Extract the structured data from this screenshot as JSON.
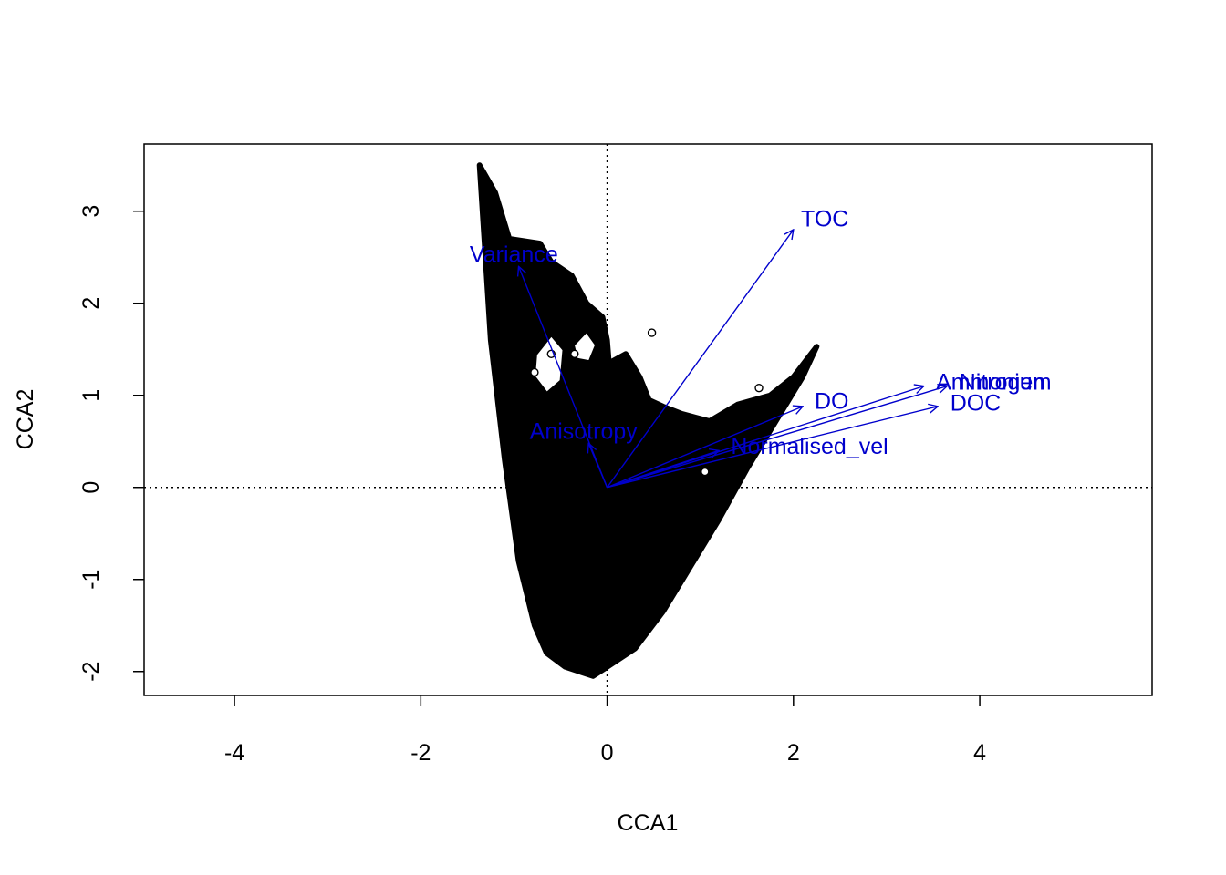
{
  "chart_data": {
    "type": "scatter",
    "xlabel": "CCA1",
    "ylabel": "CCA2",
    "xlim": [
      -4.97,
      5.85
    ],
    "ylim": [
      -2.26,
      3.73
    ],
    "x_ticks": [
      -4,
      -2,
      0,
      2,
      4
    ],
    "y_ticks": [
      -2,
      -1,
      0,
      1,
      2,
      3
    ],
    "reference_lines": {
      "x": 0,
      "y": 0,
      "style": "dotted"
    },
    "grid": false,
    "legend": "none",
    "point_color": "#000000",
    "vector_color": "#0000cc",
    "point_cloud": {
      "outline": [
        [
          -1.37,
          3.5
        ],
        [
          -1.2,
          3.2
        ],
        [
          -1.05,
          2.7
        ],
        [
          -0.72,
          2.65
        ],
        [
          -0.6,
          2.45
        ],
        [
          -0.38,
          2.3
        ],
        [
          -0.22,
          2.0
        ],
        [
          -0.05,
          1.85
        ],
        [
          0.0,
          1.6
        ],
        [
          0.02,
          1.35
        ],
        [
          0.2,
          1.45
        ],
        [
          0.35,
          1.2
        ],
        [
          0.45,
          0.95
        ],
        [
          0.6,
          0.88
        ],
        [
          0.8,
          0.8
        ],
        [
          1.1,
          0.72
        ],
        [
          1.4,
          0.9
        ],
        [
          1.75,
          1.0
        ],
        [
          2.0,
          1.2
        ],
        [
          2.25,
          1.53
        ],
        [
          2.1,
          1.2
        ],
        [
          1.8,
          0.7
        ],
        [
          1.5,
          0.2
        ],
        [
          1.2,
          -0.35
        ],
        [
          0.9,
          -0.85
        ],
        [
          0.6,
          -1.35
        ],
        [
          0.3,
          -1.75
        ],
        [
          0.0,
          -1.95
        ],
        [
          -0.15,
          -2.05
        ],
        [
          -0.45,
          -1.95
        ],
        [
          -0.65,
          -1.8
        ],
        [
          -0.78,
          -1.5
        ],
        [
          -0.95,
          -0.8
        ],
        [
          -1.1,
          0.3
        ],
        [
          -1.25,
          1.6
        ]
      ],
      "holes": [
        [
          [
            -0.78,
            1.45
          ],
          [
            -0.6,
            1.68
          ],
          [
            -0.45,
            1.5
          ],
          [
            -0.48,
            1.15
          ],
          [
            -0.65,
            1.0
          ],
          [
            -0.8,
            1.2
          ]
        ],
        [
          [
            -0.38,
            1.55
          ],
          [
            -0.22,
            1.72
          ],
          [
            -0.1,
            1.55
          ],
          [
            -0.18,
            1.35
          ],
          [
            -0.34,
            1.38
          ]
        ]
      ],
      "outliers": [
        [
          0.48,
          1.68
        ],
        [
          1.63,
          1.08
        ],
        [
          -0.78,
          1.25
        ],
        [
          -0.6,
          1.45
        ],
        [
          -0.35,
          1.45
        ],
        [
          1.05,
          0.17
        ]
      ]
    },
    "vectors": [
      {
        "name": "TOC",
        "x": 2.0,
        "y": 2.8
      },
      {
        "name": "Variance",
        "x": -0.95,
        "y": 2.4
      },
      {
        "name": "DO",
        "x": 2.1,
        "y": 0.88
      },
      {
        "name": "Ammonium",
        "x": 3.4,
        "y": 1.1
      },
      {
        "name": "Nitrogen",
        "x": 3.65,
        "y": 1.1
      },
      {
        "name": "DOC",
        "x": 3.55,
        "y": 0.88
      },
      {
        "name": "Anisotropy",
        "x": -0.2,
        "y": 0.48
      },
      {
        "name": "Normalised_vel",
        "x": 1.2,
        "y": 0.4
      }
    ]
  }
}
